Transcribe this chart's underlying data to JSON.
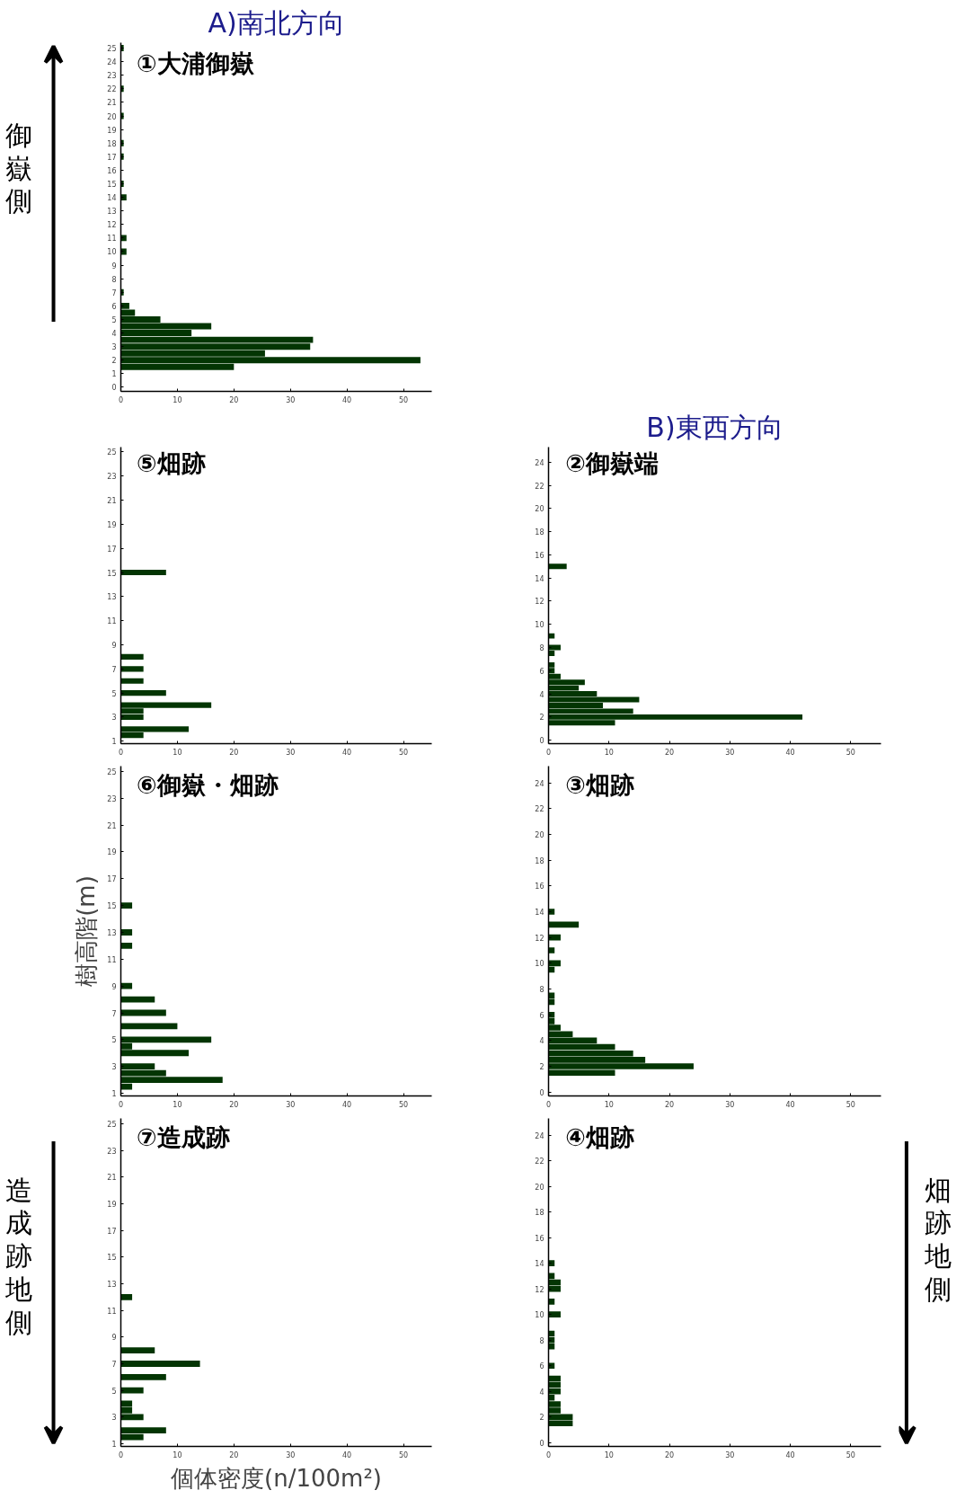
{
  "chart_data": [
    {
      "type": "bar",
      "orientation": "horizontal",
      "title": "①大浦御嶽",
      "subtitle": "A)南北方向",
      "annotations": [
        "御嶽側"
      ],
      "color": "#033503",
      "x": [
        1.5,
        2,
        2.5,
        3,
        3.5,
        4,
        4.5,
        5,
        5.5,
        6,
        7,
        10,
        11,
        14,
        15,
        17,
        18,
        20,
        22,
        25
      ],
      "values": [
        20,
        53,
        25.5,
        33.5,
        34,
        12.5,
        16,
        7,
        2.5,
        1.5,
        0.5,
        1,
        1,
        1,
        0.5,
        0.5,
        0.5,
        0.5,
        0.5,
        0.5
      ],
      "xlim": [
        0,
        55
      ],
      "xticks": [
        0,
        10,
        20,
        30,
        40,
        50
      ],
      "ylim": [
        -0.3,
        25.4
      ],
      "yticks": [
        0,
        1,
        2,
        3,
        4,
        5,
        6,
        7,
        8,
        9,
        10,
        11,
        12,
        13,
        14,
        15,
        16,
        17,
        18,
        19,
        20,
        21,
        22,
        23,
        24,
        25
      ]
    },
    {
      "type": "bar",
      "orientation": "horizontal",
      "title": "⑤畑跡",
      "color": "#033503",
      "x": [
        1.5,
        2,
        3,
        3.5,
        4,
        5,
        6,
        7,
        8,
        15
      ],
      "values": [
        4,
        12,
        4,
        4,
        16,
        8,
        4,
        4,
        4,
        8
      ],
      "xlim": [
        0,
        55
      ],
      "xticks": [
        0,
        10,
        20,
        30,
        40,
        50
      ],
      "ylim": [
        0.8,
        25.4
      ],
      "yticks": [
        1,
        3,
        5,
        7,
        9,
        11,
        13,
        15,
        17,
        19,
        21,
        23,
        25
      ]
    },
    {
      "type": "bar",
      "orientation": "horizontal",
      "title": "②御嶽端",
      "subtitle": "B)東西方向",
      "color": "#033503",
      "x": [
        1.5,
        2,
        2.5,
        3,
        3.5,
        4,
        4.5,
        5,
        5.5,
        6,
        6.5,
        7.5,
        8,
        9,
        15
      ],
      "values": [
        11,
        42,
        14,
        9,
        15,
        8,
        5,
        6,
        2,
        1,
        1,
        1,
        2,
        1,
        3
      ],
      "xlim": [
        0,
        55
      ],
      "xticks": [
        0,
        10,
        20,
        30,
        40,
        50
      ],
      "ylim": [
        -0.3,
        25.3
      ],
      "yticks": [
        0,
        2,
        4,
        6,
        8,
        10,
        12,
        14,
        16,
        18,
        20,
        22,
        24
      ]
    },
    {
      "type": "bar",
      "orientation": "horizontal",
      "title": "⑥御嶽・畑跡",
      "ylabel": "樹高階(m)",
      "color": "#033503",
      "x": [
        1.5,
        2,
        2.5,
        3,
        4,
        4.5,
        5,
        6,
        7,
        8,
        9,
        12,
        13,
        15
      ],
      "values": [
        2,
        18,
        8,
        6,
        12,
        2,
        16,
        10,
        8,
        6,
        2,
        2,
        2,
        2
      ],
      "xlim": [
        0,
        55
      ],
      "xticks": [
        0,
        10,
        20,
        30,
        40,
        50
      ],
      "ylim": [
        0.8,
        25.4
      ],
      "yticks": [
        1,
        3,
        5,
        7,
        9,
        11,
        13,
        15,
        17,
        19,
        21,
        23,
        25
      ]
    },
    {
      "type": "bar",
      "orientation": "horizontal",
      "title": "③畑跡",
      "color": "#033503",
      "x": [
        1.5,
        2,
        2.5,
        3,
        3.5,
        4,
        4.5,
        5,
        5.5,
        6,
        7,
        7.5,
        9.5,
        10,
        11,
        12,
        13,
        14
      ],
      "values": [
        11,
        24,
        16,
        14,
        11,
        8,
        4,
        2,
        1,
        1,
        1,
        1,
        1,
        2,
        1,
        2,
        5,
        1
      ],
      "xlim": [
        0,
        55
      ],
      "xticks": [
        0,
        10,
        20,
        30,
        40,
        50
      ],
      "ylim": [
        -0.3,
        25.3
      ],
      "yticks": [
        0,
        2,
        4,
        6,
        8,
        10,
        12,
        14,
        16,
        18,
        20,
        22,
        24
      ]
    },
    {
      "type": "bar",
      "orientation": "horizontal",
      "title": "⑦造成跡",
      "xlabel": "個体密度(n/100m²)",
      "annotations": [
        "造成跡地側"
      ],
      "color": "#033503",
      "x": [
        1.5,
        2,
        3,
        3.5,
        4,
        5,
        6,
        7,
        8,
        12
      ],
      "values": [
        4,
        8,
        4,
        2,
        2,
        4,
        8,
        14,
        6,
        2
      ],
      "xlim": [
        0,
        55
      ],
      "xticks": [
        0,
        10,
        20,
        30,
        40,
        50
      ],
      "ylim": [
        0.8,
        25.4
      ],
      "yticks": [
        1,
        3,
        5,
        7,
        9,
        11,
        13,
        15,
        17,
        19,
        21,
        23,
        25
      ]
    },
    {
      "type": "bar",
      "orientation": "horizontal",
      "title": "④畑跡",
      "annotations": [
        "畑跡地側"
      ],
      "color": "#033503",
      "x": [
        1.5,
        2,
        2.5,
        3,
        3.5,
        4,
        4.5,
        5,
        6,
        7.5,
        8,
        8.5,
        10,
        11,
        12,
        12.5,
        13,
        14
      ],
      "values": [
        4,
        4,
        2,
        2,
        1,
        2,
        2,
        2,
        1,
        1,
        1,
        1,
        2,
        1,
        2,
        2,
        1,
        1
      ],
      "xlim": [
        0,
        55
      ],
      "xticks": [
        0,
        10,
        20,
        30,
        40,
        50
      ],
      "ylim": [
        -0.3,
        25.3
      ],
      "yticks": [
        0,
        2,
        4,
        6,
        8,
        10,
        12,
        14,
        16,
        18,
        20,
        22,
        24
      ]
    }
  ]
}
